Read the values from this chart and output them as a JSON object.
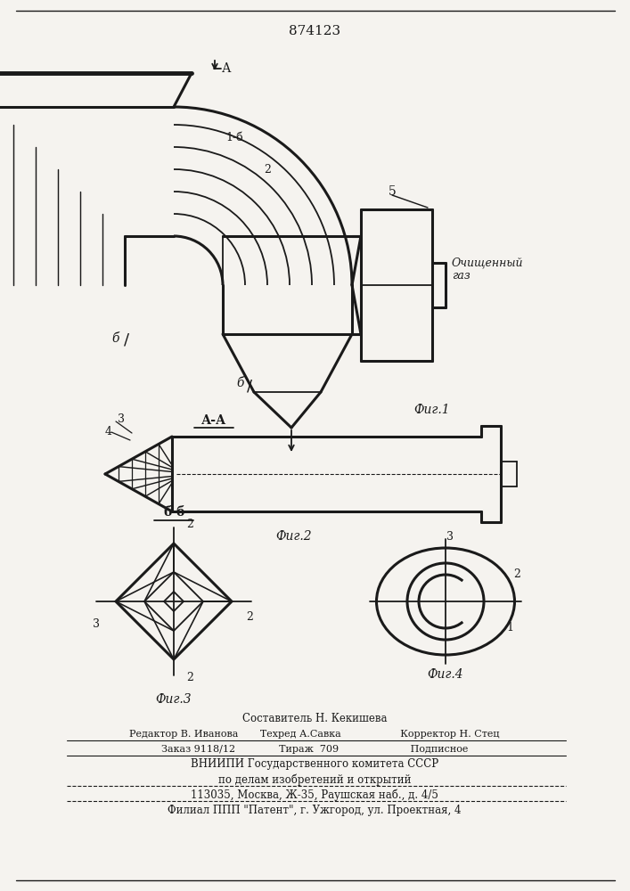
{
  "title_number": "874123",
  "bg_color": "#f5f3ef",
  "line_color": "#1a1a1a",
  "fig1_label": "Фиг.1",
  "fig2_label": "Фиг.2",
  "fig3_label": "Фиг.3",
  "fig4_label": "Фиг.4",
  "section_aa": "А-А",
  "section_bb": "б-б",
  "label_ochistka": "Очищенный\nгаз",
  "footer_lines": [
    "Составитель Н. Кекишева",
    "Редактор В. Иванова       Техред А.Савка                   Корректор Н. Стец",
    "Заказ 9118/12              Тираж  709                       Подписное",
    "ВНИИПИ Государственного комитета СССР",
    "по делам изобретений и открытий",
    "113035, Москва, Ж-35, Раушская наб., д. 4/5",
    "Филиал ППП \"Патент\", г. Ужгород, ул. Проектная, 4"
  ]
}
